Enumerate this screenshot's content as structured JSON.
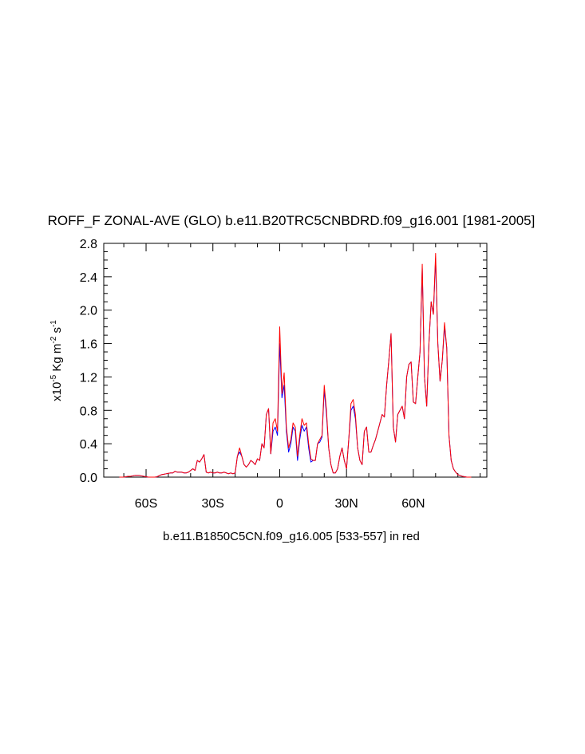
{
  "chart_data": {
    "type": "line",
    "title": "ROFF_F ZONAL-AVE (GLO) b.e11.B20TRC5CNBDRD.f09_g16.001 [1981-2005]",
    "x_label": "b.e11.B1850C5CN.f09_g16.005 [533-557] in red",
    "y_label": [
      "x10",
      "-5",
      " Kg m",
      "-2",
      " s",
      "-1"
    ],
    "xlim": [
      -79,
      93
    ],
    "ylim": [
      0,
      2.8
    ],
    "xticks": [
      {
        "value": -60,
        "label": "60S"
      },
      {
        "value": -30,
        "label": "30S"
      },
      0,
      {
        "value": 30,
        "label": "30N"
      },
      {
        "value": 60,
        "label": "60N"
      }
    ],
    "xminorticks": [
      -70,
      -50,
      -40,
      -20,
      -10,
      10,
      20,
      40,
      50,
      70,
      80,
      90
    ],
    "yticks": [
      {
        "value": 0,
        "label": "0.0"
      },
      0.4,
      0.8,
      1.2,
      1.6,
      {
        "value": 2,
        "label": "2.0"
      },
      2.4,
      2.8
    ],
    "yminorticks": [
      0.1,
      0.2,
      0.3,
      0.5,
      0.6,
      0.7,
      0.9,
      1.0,
      1.1,
      1.3,
      1.4,
      1.5,
      1.7,
      1.8,
      1.9,
      2.1,
      2.2,
      2.3,
      2.5,
      2.6,
      2.7
    ],
    "x": [
      -72,
      -71,
      -70,
      -69,
      -68,
      -67,
      -66,
      -65,
      -64,
      -63,
      -62,
      -61,
      -60,
      -59,
      -58,
      -57,
      -56,
      -55,
      -54,
      -53,
      -52,
      -51,
      -50,
      -49,
      -48,
      -47,
      -46,
      -45,
      -44,
      -43,
      -42,
      -41,
      -40,
      -39,
      -38,
      -37,
      -36,
      -35,
      -34,
      -33,
      -32,
      -31,
      -30,
      -29,
      -28,
      -27,
      -26,
      -25,
      -24,
      -23,
      -22,
      -21,
      -20,
      -19,
      -18,
      -17,
      -16,
      -15,
      -14,
      -13,
      -12,
      -11,
      -10,
      -9,
      -8,
      -7,
      -6,
      -5,
      -4,
      -3,
      -2,
      -1,
      0,
      1,
      2,
      3,
      4,
      5,
      6,
      7,
      8,
      9,
      10,
      11,
      12,
      13,
      14,
      15,
      16,
      17,
      18,
      19,
      20,
      21,
      22,
      23,
      24,
      25,
      26,
      27,
      28,
      29,
      30,
      31,
      32,
      33,
      34,
      35,
      36,
      37,
      38,
      39,
      40,
      41,
      42,
      43,
      44,
      45,
      46,
      47,
      48,
      49,
      50,
      51,
      52,
      53,
      54,
      55,
      56,
      57,
      58,
      59,
      60,
      61,
      62,
      63,
      64,
      65,
      66,
      67,
      68,
      69,
      70,
      71,
      72,
      73,
      74,
      75,
      76,
      77,
      78,
      79,
      80,
      81,
      82,
      83,
      84,
      85,
      86
    ],
    "series": [
      {
        "color": "#0000ff",
        "values": [
          0,
          0,
          0,
          0.005,
          0.01,
          0.01,
          0.015,
          0.02,
          0.02,
          0.02,
          0.015,
          0.01,
          0.005,
          0,
          0,
          0,
          0,
          0.005,
          0.02,
          0.03,
          0.035,
          0.04,
          0.045,
          0.05,
          0.05,
          0.07,
          0.06,
          0.06,
          0.06,
          0.05,
          0.05,
          0.06,
          0.08,
          0.1,
          0.08,
          0.2,
          0.18,
          0.22,
          0.27,
          0.06,
          0.05,
          0.06,
          0.05,
          0.05,
          0.06,
          0.05,
          0.05,
          0.06,
          0.05,
          0.04,
          0.05,
          0.04,
          0.05,
          0.25,
          0.3,
          0.25,
          0.15,
          0.12,
          0.15,
          0.2,
          0.18,
          0.15,
          0.22,
          0.2,
          0.4,
          0.35,
          0.75,
          0.82,
          0.28,
          0.55,
          0.6,
          0.5,
          1.6,
          0.95,
          1.1,
          0.55,
          0.3,
          0.4,
          0.6,
          0.55,
          0.2,
          0.45,
          0.62,
          0.55,
          0.6,
          0.35,
          0.18,
          0.2,
          0.2,
          0.4,
          0.42,
          0.48,
          1.05,
          0.75,
          0.35,
          0.15,
          0.05,
          0.05,
          0.1,
          0.25,
          0.35,
          0.2,
          0.1,
          0.45,
          0.8,
          0.85,
          0.7,
          0.35,
          0.2,
          0.15,
          0.55,
          0.6,
          0.3,
          0.3,
          0.38,
          0.45,
          0.55,
          0.65,
          0.75,
          0.72,
          1.1,
          1.4,
          1.72,
          0.6,
          0.42,
          0.75,
          0.8,
          0.85,
          0.7,
          1.2,
          1.35,
          1.38,
          0.9,
          0.88,
          1.2,
          1.5,
          2.5,
          1.2,
          0.85,
          1.6,
          2.1,
          1.95,
          2.62,
          1.6,
          1.15,
          1.4,
          1.8,
          1.55,
          0.5,
          0.2,
          0.1,
          0.06,
          0.03,
          0.02,
          0.01,
          0.005,
          0,
          0,
          0
        ]
      },
      {
        "color": "#ff0000",
        "values": [
          0,
          0,
          0,
          0.005,
          0.01,
          0.01,
          0.015,
          0.02,
          0.02,
          0.02,
          0.015,
          0.01,
          0.005,
          0,
          0,
          0,
          0,
          0.005,
          0.02,
          0.03,
          0.035,
          0.04,
          0.045,
          0.05,
          0.05,
          0.07,
          0.06,
          0.06,
          0.06,
          0.05,
          0.05,
          0.06,
          0.08,
          0.1,
          0.08,
          0.2,
          0.18,
          0.22,
          0.27,
          0.06,
          0.05,
          0.06,
          0.05,
          0.05,
          0.06,
          0.05,
          0.05,
          0.06,
          0.05,
          0.04,
          0.05,
          0.04,
          0.05,
          0.25,
          0.35,
          0.25,
          0.15,
          0.12,
          0.15,
          0.2,
          0.18,
          0.15,
          0.22,
          0.2,
          0.4,
          0.35,
          0.75,
          0.82,
          0.28,
          0.65,
          0.7,
          0.55,
          1.8,
          1.0,
          1.25,
          0.6,
          0.35,
          0.45,
          0.65,
          0.6,
          0.25,
          0.5,
          0.7,
          0.62,
          0.65,
          0.4,
          0.22,
          0.2,
          0.2,
          0.4,
          0.45,
          0.5,
          1.1,
          0.8,
          0.35,
          0.15,
          0.05,
          0.05,
          0.1,
          0.25,
          0.35,
          0.2,
          0.1,
          0.45,
          0.88,
          0.93,
          0.75,
          0.35,
          0.2,
          0.15,
          0.55,
          0.6,
          0.3,
          0.3,
          0.38,
          0.45,
          0.55,
          0.65,
          0.75,
          0.72,
          1.1,
          1.4,
          1.72,
          0.6,
          0.42,
          0.75,
          0.8,
          0.85,
          0.7,
          1.2,
          1.35,
          1.38,
          0.9,
          0.88,
          1.2,
          1.5,
          2.55,
          1.2,
          0.85,
          1.6,
          2.1,
          1.95,
          2.68,
          1.6,
          1.15,
          1.4,
          1.85,
          1.55,
          0.5,
          0.2,
          0.1,
          0.06,
          0.03,
          0.02,
          0.01,
          0.005,
          0,
          0,
          0
        ]
      }
    ]
  }
}
